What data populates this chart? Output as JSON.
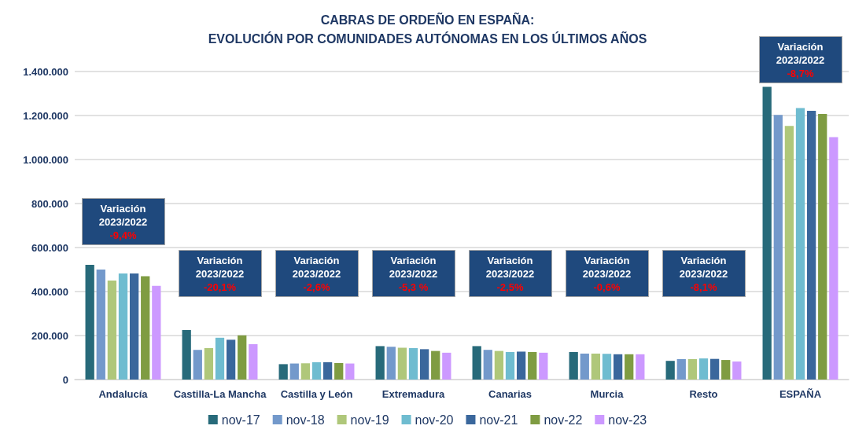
{
  "chart_data": {
    "type": "bar",
    "title": "CABRAS DE ORDEÑO EN ESPAÑA:\nEVOLUCIÓN POR COMUNIDADES AUTÓNOMAS EN LOS ÚLTIMOS AÑOS",
    "categories": [
      "Andalucía",
      "Castilla-La Mancha",
      "Castilla y León",
      "Extremadura",
      "Canarias",
      "Murcia",
      "Resto",
      "ESPAÑA"
    ],
    "series": [
      {
        "name": "nov-17",
        "color": "#276a7a",
        "values": [
          521000,
          225000,
          70000,
          152000,
          152000,
          125000,
          85000,
          1330000
        ]
      },
      {
        "name": "nov-18",
        "color": "#7399cb",
        "values": [
          500000,
          135000,
          73000,
          149000,
          135000,
          118000,
          93000,
          1203000
        ]
      },
      {
        "name": "nov-19",
        "color": "#afc77a",
        "values": [
          450000,
          143000,
          74000,
          145000,
          130000,
          118000,
          93000,
          1153000
        ]
      },
      {
        "name": "nov-20",
        "color": "#6fbcd0",
        "values": [
          482000,
          190000,
          79000,
          143000,
          125000,
          117000,
          96000,
          1234000
        ]
      },
      {
        "name": "nov-21",
        "color": "#3a679c",
        "values": [
          482000,
          181000,
          79000,
          138000,
          127000,
          115000,
          94000,
          1221000
        ]
      },
      {
        "name": "nov-22",
        "color": "#7f9c42",
        "values": [
          470000,
          201000,
          75000,
          130000,
          125000,
          115000,
          89000,
          1207000
        ]
      },
      {
        "name": "nov-23",
        "color": "#cc99ff",
        "values": [
          426000,
          161000,
          73000,
          122000,
          122000,
          115000,
          82000,
          1102000
        ]
      }
    ],
    "ylim": [
      0,
      1400000
    ],
    "yticks": [
      0,
      {
        "value": 200000,
        "label": "200.000"
      },
      {
        "value": 400000,
        "label": "400.000"
      },
      {
        "value": 600000,
        "label": "600.000"
      },
      {
        "value": 800000,
        "label": "800.000"
      },
      {
        "value": 1000000,
        "label": "1.000.000"
      },
      {
        "value": 1200000,
        "label": "1.200.000"
      },
      {
        "value": 1400000,
        "label": "1.400.000"
      }
    ],
    "grid": "y",
    "legend": "bottom",
    "annotations": [
      "Variación\n2023/2022\n-9,4%",
      "Variación\n2023/2022\n-20,1%",
      "Variación\n2023/2022\n-2,6%",
      "Variación\n2023/2022\n-5,3 %",
      "Variación\n2023/2022\n-2,5%",
      "Variación\n2023/2022\n-0,6%",
      "Variación\n2023/2022\n-8,1%",
      "Variación\n2023/2022\n-8,7%"
    ]
  }
}
